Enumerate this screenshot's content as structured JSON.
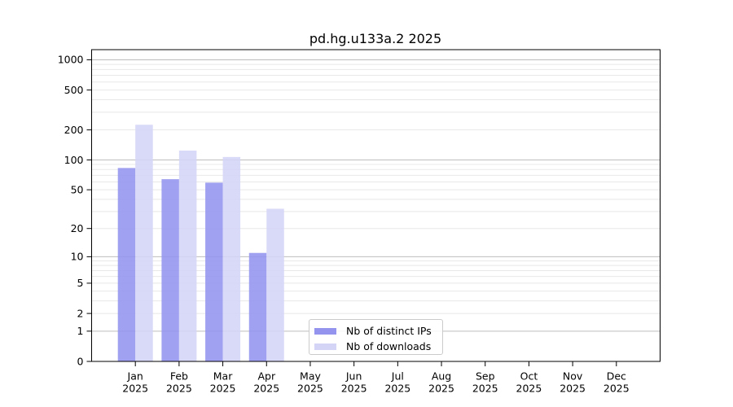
{
  "chart_data": {
    "type": "bar",
    "title": "pd.hg.u133a.2 2025",
    "year": "2025",
    "categories": [
      "Jan",
      "Feb",
      "Mar",
      "Apr",
      "May",
      "Jun",
      "Jul",
      "Aug",
      "Sep",
      "Oct",
      "Nov",
      "Dec"
    ],
    "series": [
      {
        "name": "Nb of distinct IPs",
        "color": "#9494ef",
        "values": [
          83,
          64,
          59,
          11,
          0,
          0,
          0,
          0,
          0,
          0,
          0,
          0
        ]
      },
      {
        "name": "Nb of downloads",
        "color": "#d4d4f7",
        "values": [
          225,
          124,
          107,
          32,
          0,
          0,
          0,
          0,
          0,
          0,
          0,
          0
        ]
      }
    ],
    "y_axis": {
      "scale": "log10(1+x)",
      "ticks": [
        0,
        1,
        2,
        5,
        10,
        20,
        50,
        100,
        200,
        500,
        1000
      ],
      "range": [
        0,
        1300
      ]
    },
    "grid": {
      "minor_color": "#e8e8e8",
      "major_color": "#bdbdbd",
      "major_at": [
        1,
        10,
        100,
        1000
      ]
    },
    "legend": {
      "position": "inside lower-center",
      "entries": [
        "Nb of distinct IPs",
        "Nb of downloads"
      ]
    },
    "frame_color": "#000000",
    "background": "#ffffff"
  }
}
